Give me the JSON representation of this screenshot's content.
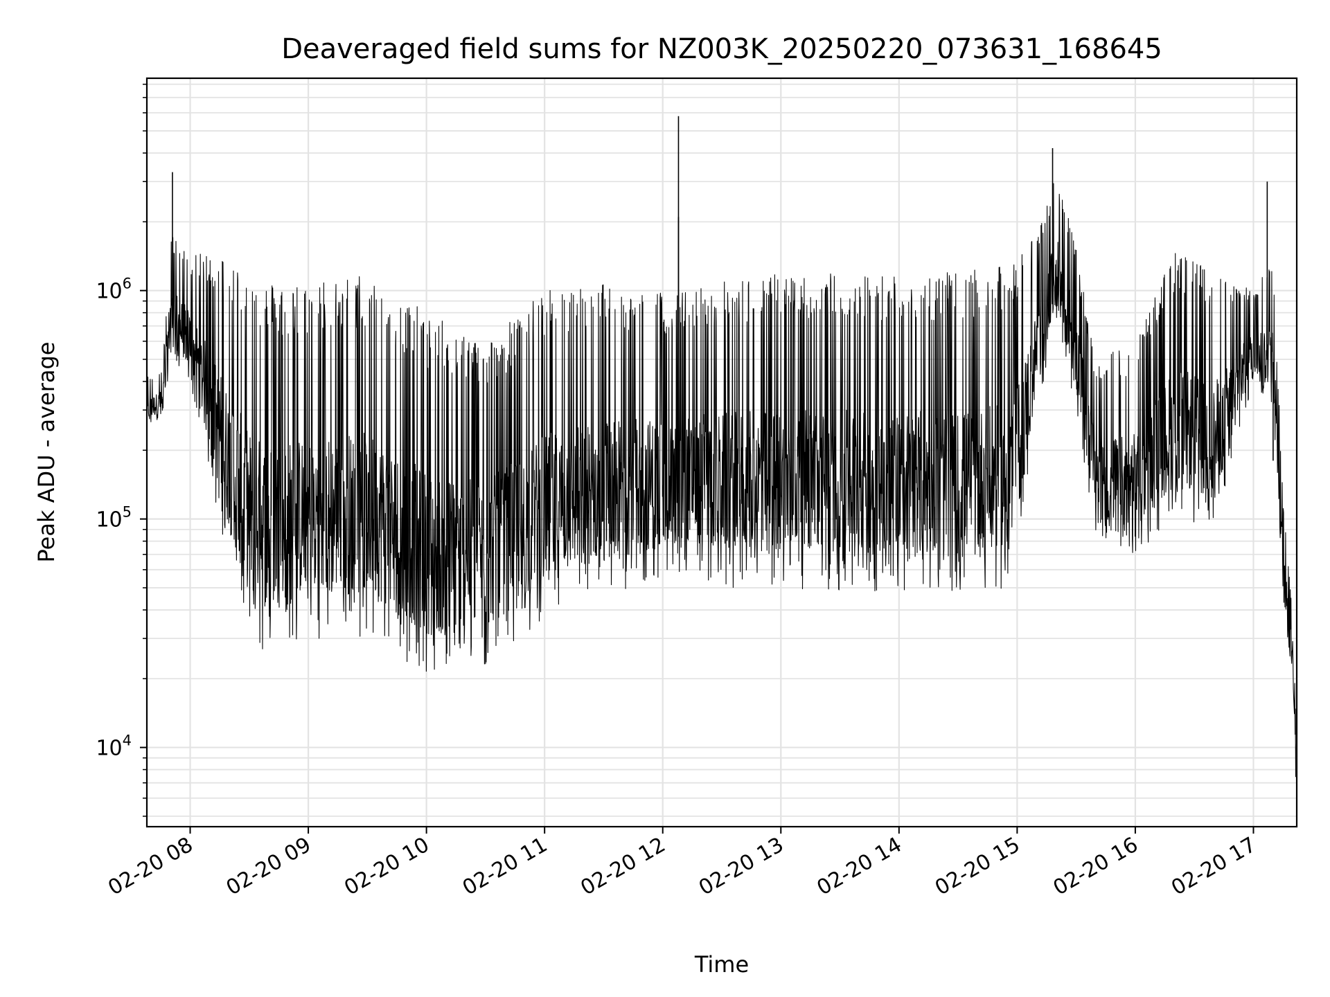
{
  "chart_data": {
    "type": "line",
    "title": "Deaveraged field sums for NZ003K_20250220_073631_168645",
    "xlabel": "Time",
    "ylabel": "Peak ADU - average",
    "yscale": "log",
    "ylim": [
      4500,
      8500000
    ],
    "xlim": [
      "2025-02-20 07:38",
      "2025-02-20 17:22"
    ],
    "grid": true,
    "x_ticks": [
      "02-20 08",
      "02-20 09",
      "02-20 10",
      "02-20 11",
      "02-20 12",
      "02-20 13",
      "02-20 14",
      "02-20 15",
      "02-20 16",
      "02-20 17"
    ],
    "y_ticks": [
      {
        "base": "10",
        "exp": "4",
        "value": 10000
      },
      {
        "base": "10",
        "exp": "5",
        "value": 100000
      },
      {
        "base": "10",
        "exp": "6",
        "value": 1000000
      }
    ],
    "line_color": "#000000",
    "series": [
      {
        "name": "",
        "envelope": [
          {
            "t": "2025-02-20 07:38",
            "low": 250000,
            "high": 420000
          },
          {
            "t": "2025-02-20 07:46",
            "low": 280000,
            "high": 450000
          },
          {
            "t": "2025-02-20 07:50",
            "low": 500000,
            "high": 1800000
          },
          {
            "t": "2025-02-20 08:00",
            "low": 400000,
            "high": 1400000
          },
          {
            "t": "2025-02-20 08:10",
            "low": 150000,
            "high": 1500000
          },
          {
            "t": "2025-02-20 08:20",
            "low": 60000,
            "high": 1400000
          },
          {
            "t": "2025-02-20 08:30",
            "low": 30000,
            "high": 1200000
          },
          {
            "t": "2025-02-20 08:40",
            "low": 25000,
            "high": 1100000
          },
          {
            "t": "2025-02-20 09:00",
            "low": 30000,
            "high": 1100000
          },
          {
            "t": "2025-02-20 09:30",
            "low": 30000,
            "high": 1200000
          },
          {
            "t": "2025-02-20 10:00",
            "low": 20000,
            "high": 800000
          },
          {
            "t": "2025-02-20 10:30",
            "low": 22000,
            "high": 600000
          },
          {
            "t": "2025-02-20 11:00",
            "low": 35000,
            "high": 1000000
          },
          {
            "t": "2025-02-20 11:30",
            "low": 45000,
            "high": 1100000
          },
          {
            "t": "2025-02-20 11:50",
            "low": 50000,
            "high": 1000000
          },
          {
            "t": "2025-02-20 12:10",
            "low": 55000,
            "high": 1000000
          },
          {
            "t": "2025-02-20 12:30",
            "low": 50000,
            "high": 1100000
          },
          {
            "t": "2025-02-20 13:00",
            "low": 50000,
            "high": 1200000
          },
          {
            "t": "2025-02-20 13:30",
            "low": 48000,
            "high": 1200000
          },
          {
            "t": "2025-02-20 14:00",
            "low": 48000,
            "high": 1200000
          },
          {
            "t": "2025-02-20 14:30",
            "low": 48000,
            "high": 1200000
          },
          {
            "t": "2025-02-20 14:58",
            "low": 50000,
            "high": 1300000
          },
          {
            "t": "2025-02-20 15:10",
            "low": 300000,
            "high": 1800000
          },
          {
            "t": "2025-02-20 15:20",
            "low": 700000,
            "high": 3500000
          },
          {
            "t": "2025-02-20 15:30",
            "low": 300000,
            "high": 1500000
          },
          {
            "t": "2025-02-20 15:40",
            "low": 80000,
            "high": 500000
          },
          {
            "t": "2025-02-20 16:00",
            "low": 70000,
            "high": 600000
          },
          {
            "t": "2025-02-20 16:20",
            "low": 100000,
            "high": 1500000
          },
          {
            "t": "2025-02-20 16:40",
            "low": 90000,
            "high": 1200000
          },
          {
            "t": "2025-02-20 17:00",
            "low": 400000,
            "high": 1000000
          },
          {
            "t": "2025-02-20 17:10",
            "low": 300000,
            "high": 1500000
          },
          {
            "t": "2025-02-20 17:15",
            "low": 40000,
            "high": 120000
          },
          {
            "t": "2025-02-20 17:20",
            "low": 20000,
            "high": 40000
          },
          {
            "t": "2025-02-20 17:22",
            "low": 5000,
            "high": 10000
          }
        ],
        "spikes": [
          {
            "t": "2025-02-20 07:51",
            "y": 3300000
          },
          {
            "t": "2025-02-20 12:08",
            "y": 2100000
          },
          {
            "t": "2025-02-20 12:08",
            "y": 5800000
          },
          {
            "t": "2025-02-20 15:18",
            "y": 4200000
          },
          {
            "t": "2025-02-20 17:07",
            "y": 3000000
          },
          {
            "t": "2025-02-20 17:10",
            "y": 180000
          }
        ]
      }
    ]
  }
}
